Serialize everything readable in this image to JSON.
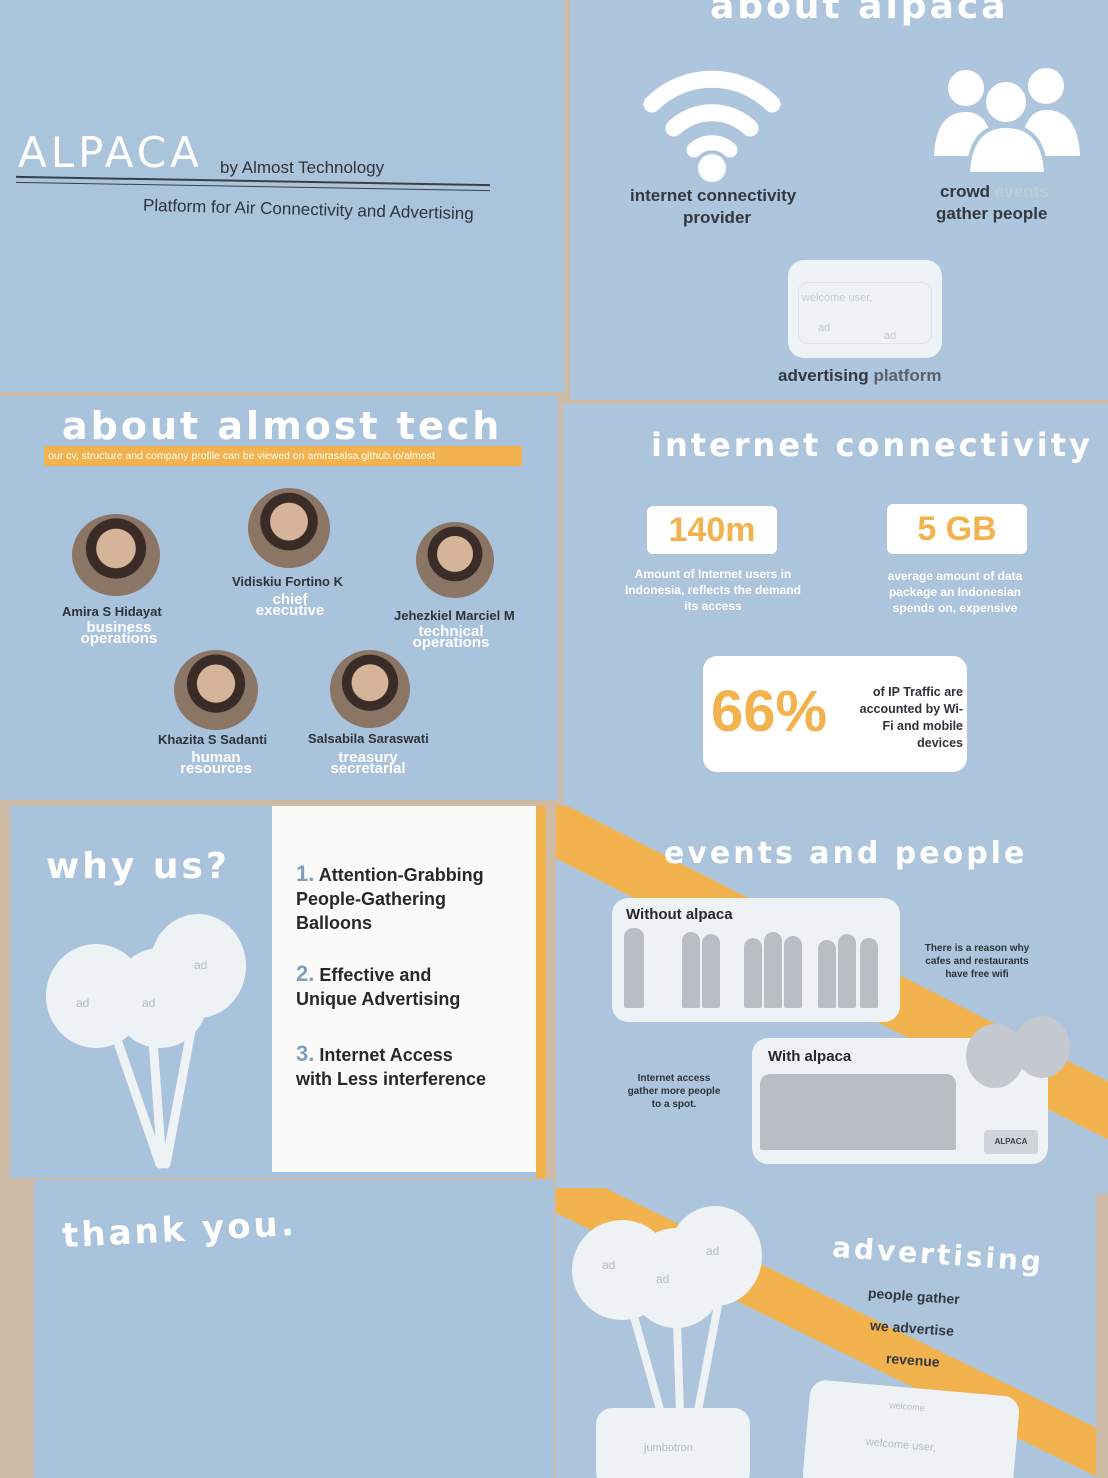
{
  "title_panel": {
    "logo": "ALPACA",
    "byline": "by Almost Technology",
    "subtitle": "Platform for Air Connectivity and Advertising"
  },
  "about_alpaca": {
    "title": "about alpaca",
    "wifi_label_1": "internet connectivity",
    "wifi_label_2": "provider",
    "crowd_label_1": "crowd",
    "crowd_label_faded": "events",
    "crowd_label_2": "gather people",
    "card_welcome": "welcome user,",
    "card_ad_1": "ad",
    "card_ad_2": "ad",
    "ad_label_1": "advertising",
    "ad_label_2": "platform"
  },
  "about_almost_tech": {
    "title": "about almost tech",
    "banner": "our cv, structure and company profile can be viewed on amirasalsa.github.io/almost",
    "people": [
      {
        "name": "Amira S Hidayat",
        "role_1": "business",
        "role_2": "operations"
      },
      {
        "name": "Vidiskiu Fortino K",
        "role_1": "chief",
        "role_2": "executive"
      },
      {
        "name": "Jehezkiel Marciel M",
        "role_1": "technical",
        "role_2": "operations"
      },
      {
        "name": "Khazita S Sadanti",
        "role_1": "human",
        "role_2": "resources"
      },
      {
        "name": "Salsabila Saraswati",
        "role_1": "treasury",
        "role_2": "secretarial"
      }
    ]
  },
  "internet_connectivity": {
    "title": "internet connectivity",
    "stat1_value": "140m",
    "stat1_desc": "Amount of Internet users in Indonesia, reflects the demand its access",
    "stat2_value": "5 GB",
    "stat2_desc": "average amount of data package an Indonesian spends on, expensive",
    "stat3_value": "66%",
    "stat3_desc": "of IP Traffic are accounted by Wi-Fi and mobile devices"
  },
  "why_us": {
    "title": "why us?",
    "ads": [
      "ad",
      "ad",
      "ad"
    ],
    "items": [
      {
        "num": "1.",
        "line1": "Attention-Grabbing",
        "line2": "People-Gathering",
        "line3": "Balloons"
      },
      {
        "num": "2.",
        "line1": "Effective and",
        "line2": "Unique Advertising",
        "line3": ""
      },
      {
        "num": "3.",
        "line1": "Internet Access",
        "line2": "with Less interference",
        "line3": ""
      }
    ]
  },
  "events": {
    "title": "events and people",
    "without": "Without alpaca",
    "with": "With alpaca",
    "note1": "There is a reason why cafes and restaurants have free wifi",
    "note2": "Internet access gather more people to a spot.",
    "tag": "ALPACA"
  },
  "thank_you": {
    "text": "thank you."
  },
  "advertising": {
    "title": "advertising",
    "line1": "people gather",
    "line2": "we advertise",
    "line3": "revenue",
    "ads": [
      "ad",
      "ad",
      "ad"
    ],
    "jumbotron": "jumbotron",
    "card_top": "welcome",
    "card_welcome": "welcome user,"
  }
}
